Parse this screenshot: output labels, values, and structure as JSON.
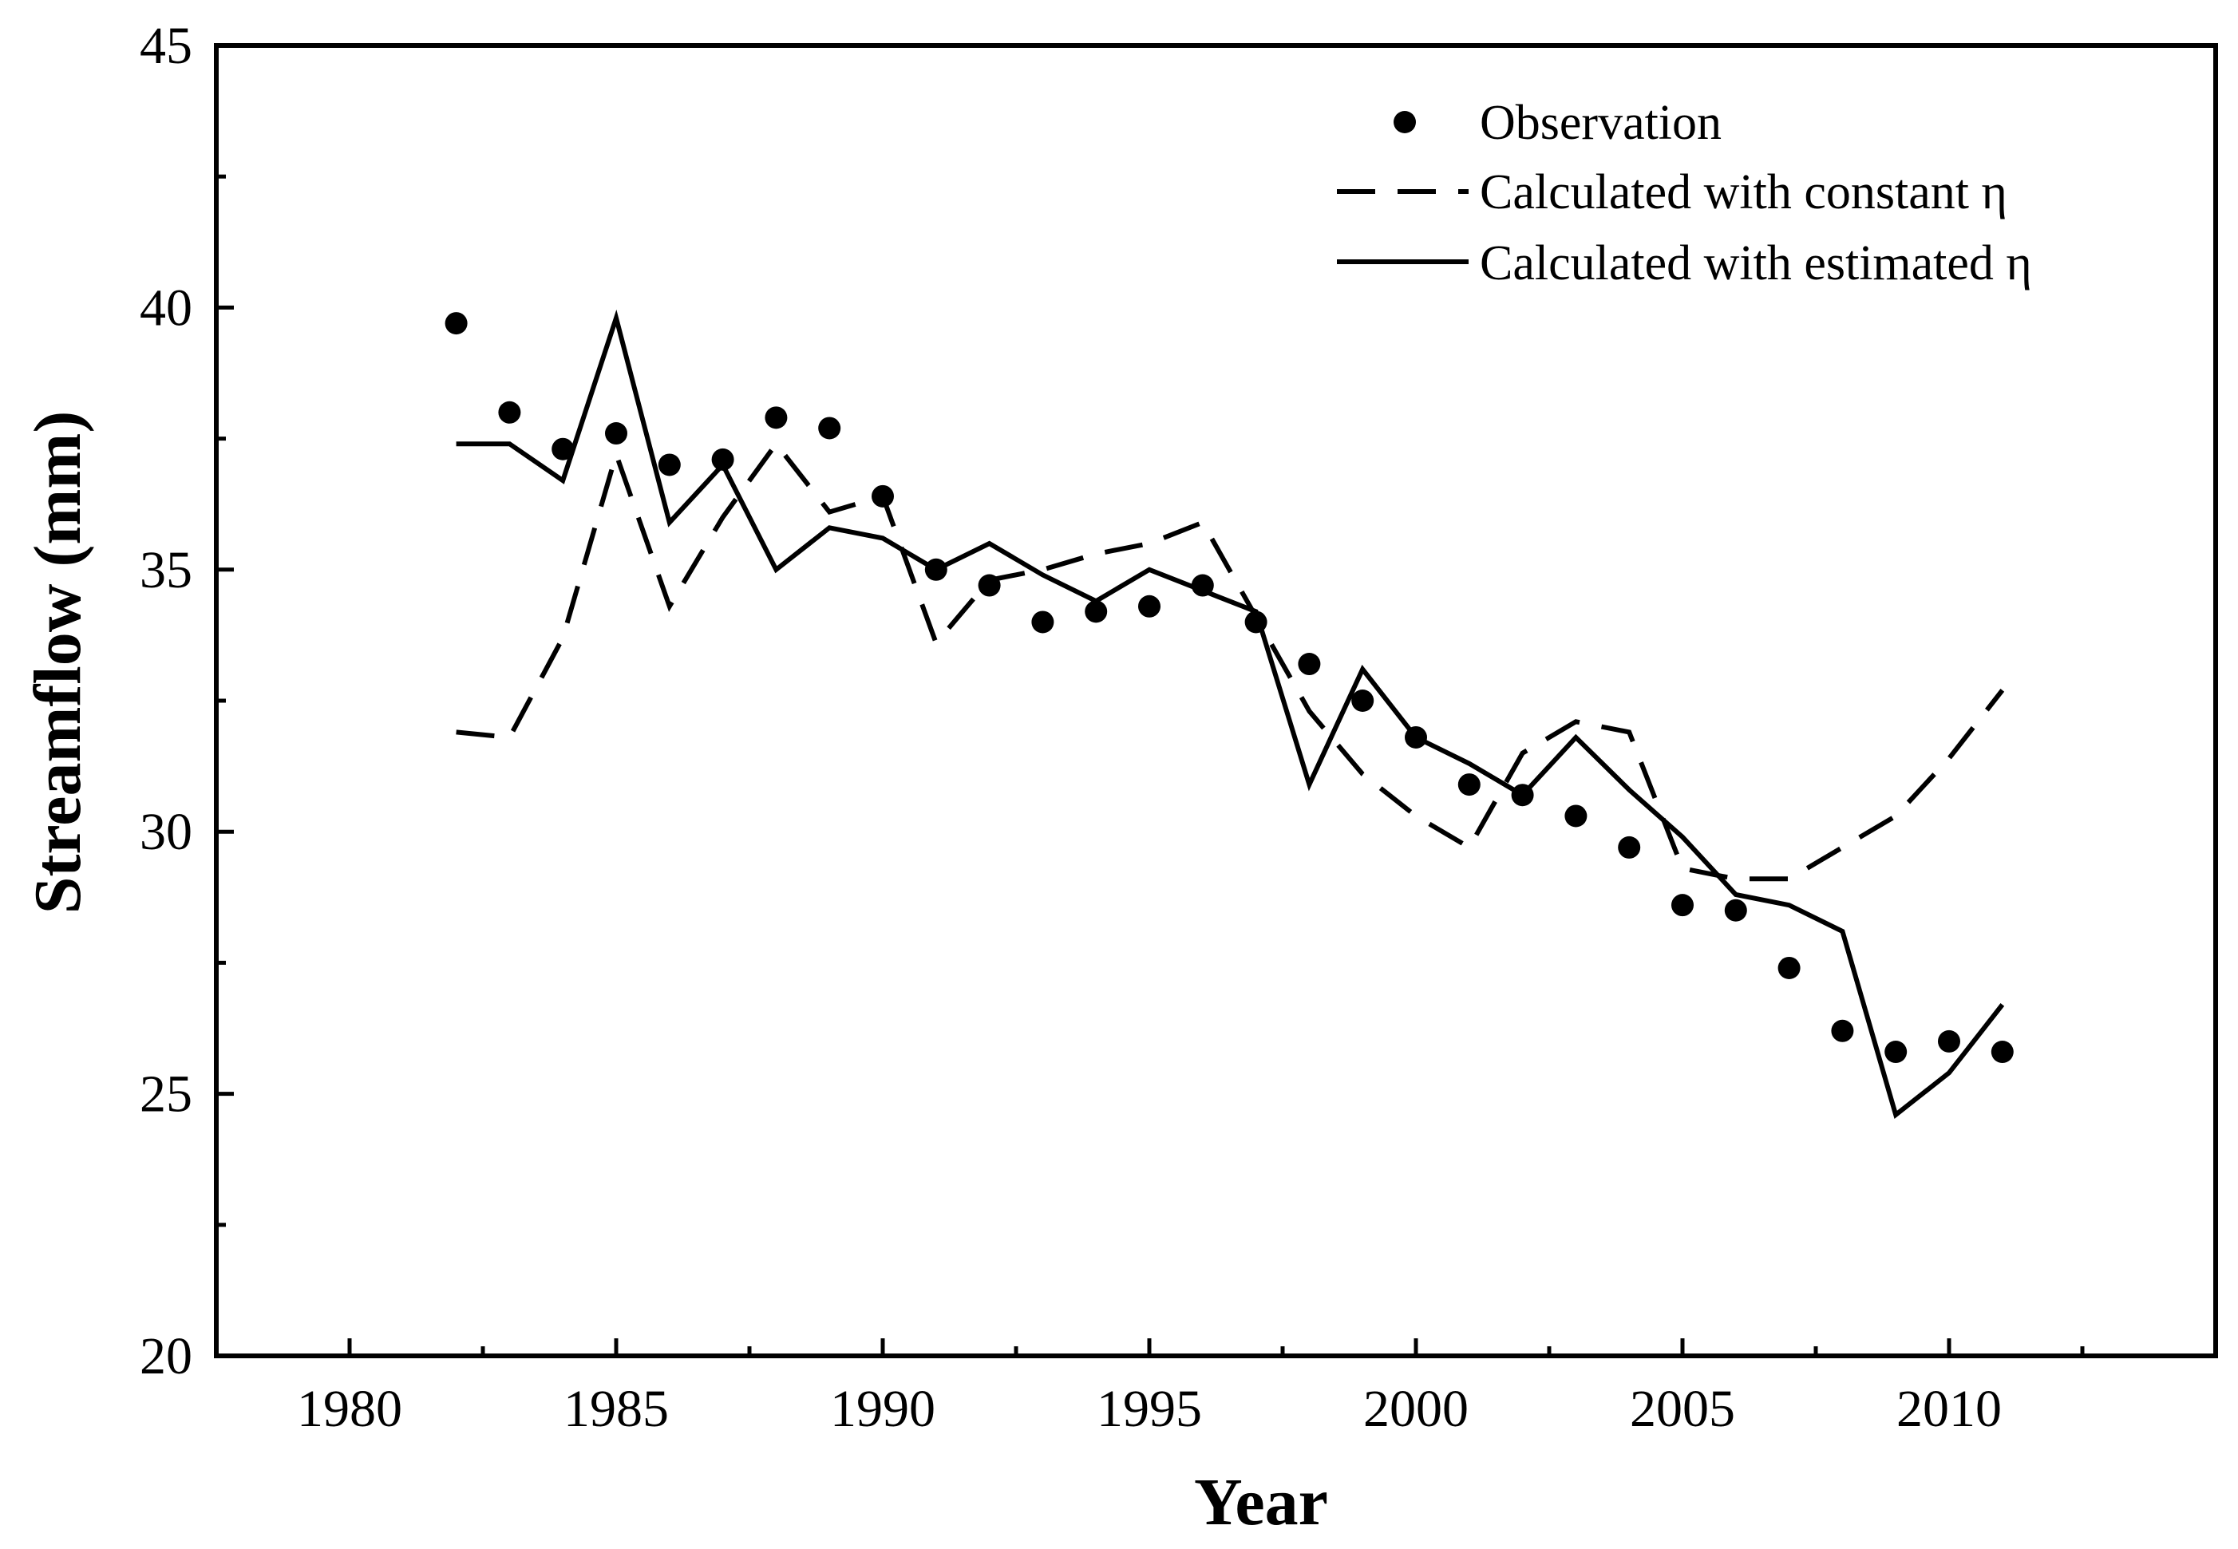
{
  "chart_data": {
    "type": "line",
    "title": "",
    "xlabel": "Year",
    "ylabel": "Streamflow (mm)",
    "xlim": [
      1977.5,
      2015
    ],
    "ylim": [
      20,
      45
    ],
    "x_ticks": [
      1980,
      1985,
      1990,
      1995,
      2000,
      2005,
      2010
    ],
    "x_tick_labels": [
      "1980",
      "1985",
      "1990",
      "1995",
      "2000",
      "2005",
      "2010"
    ],
    "y_ticks": [
      20,
      25,
      30,
      35,
      40,
      45
    ],
    "y_tick_labels": [
      "20",
      "25",
      "30",
      "35",
      "40",
      "45"
    ],
    "grid": false,
    "legend_position": "top-right",
    "x": [
      1982,
      1983,
      1984,
      1985,
      1986,
      1987,
      1988,
      1989,
      1990,
      1991,
      1992,
      1993,
      1994,
      1995,
      1996,
      1997,
      1998,
      1999,
      2000,
      2001,
      2002,
      2003,
      2004,
      2005,
      2006,
      2007,
      2008,
      2009,
      2010,
      2011
    ],
    "series": [
      {
        "name": "Observation",
        "style": "markers",
        "values": [
          39.7,
          38.0,
          37.3,
          37.6,
          37.0,
          37.1,
          37.9,
          37.7,
          36.4,
          35.0,
          34.7,
          34.0,
          34.2,
          34.3,
          34.7,
          34.0,
          33.2,
          32.5,
          31.8,
          30.9,
          30.7,
          30.3,
          29.7,
          28.6,
          28.5,
          27.4,
          26.2,
          25.8,
          26.0,
          25.8
        ]
      },
      {
        "name": "Calculated with constant η",
        "style": "dashed",
        "values": [
          31.9,
          31.8,
          33.7,
          37.2,
          34.3,
          36.0,
          37.4,
          36.1,
          36.4,
          33.6,
          34.8,
          35.0,
          35.3,
          35.5,
          35.9,
          34.1,
          32.3,
          31.1,
          30.3,
          29.7,
          31.5,
          32.1,
          31.9,
          29.3,
          29.1,
          29.1,
          29.7,
          30.3,
          31.4,
          32.7
        ]
      },
      {
        "name": "Calculated with estimated η",
        "style": "solid",
        "values": [
          37.4,
          37.4,
          36.7,
          39.8,
          35.9,
          37.0,
          35.0,
          35.8,
          35.6,
          35.0,
          35.5,
          34.9,
          34.4,
          35.0,
          34.6,
          34.2,
          30.9,
          33.1,
          31.8,
          31.3,
          30.7,
          31.8,
          30.8,
          29.9,
          28.8,
          28.6,
          28.1,
          24.6,
          25.4,
          26.7
        ]
      }
    ]
  }
}
